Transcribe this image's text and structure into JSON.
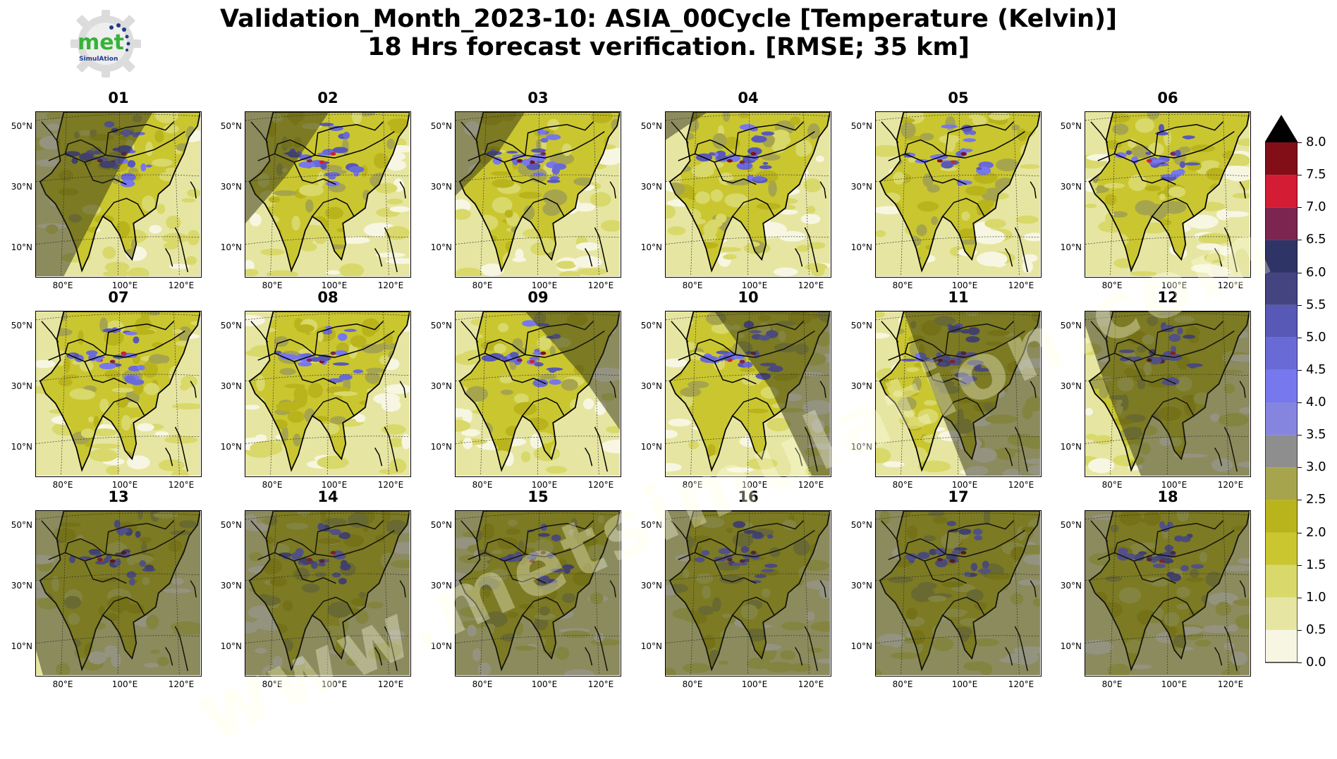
{
  "title_line1": "Validation_Month_2023-10: ASIA_00Cycle [Temperature (Kelvin)]",
  "title_line2": "18 Hrs forecast verification.  [RMSE; 35 km]",
  "logo": {
    "text": "met",
    "subtext": "SimulAtion"
  },
  "watermark": "www.metsimulation.com",
  "chart_data": {
    "type": "heatmap",
    "variable": "Temperature (Kelvin)",
    "metric": "RMSE",
    "resolution": "35 km",
    "panels": [
      "01",
      "02",
      "03",
      "04",
      "05",
      "06",
      "07",
      "08",
      "09",
      "10",
      "11",
      "12",
      "13",
      "14",
      "15",
      "16",
      "17",
      "18"
    ],
    "lat_ticks": [
      "50°N",
      "30°N",
      "10°N"
    ],
    "lon_ticks": [
      "80°E",
      "100°E",
      "120°E"
    ],
    "colorbar": {
      "ticks": [
        "0.0",
        "0.5",
        "1.0",
        "1.5",
        "2.0",
        "2.5",
        "3.0",
        "3.5",
        "4.0",
        "4.5",
        "5.0",
        "5.5",
        "6.0",
        "6.5",
        "7.0",
        "7.5",
        "8.0"
      ],
      "levels": [
        0.0,
        0.5,
        1.0,
        1.5,
        2.0,
        2.5,
        3.0,
        3.5,
        4.0,
        4.5,
        5.0,
        5.5,
        6.0,
        6.5,
        7.0,
        7.5,
        8.0
      ],
      "colors": [
        "#f7f6e2",
        "#e6e6a2",
        "#d9d86a",
        "#cac630",
        "#bab41c",
        "#a6a54e",
        "#8e8e8e",
        "#8585e0",
        "#7777ee",
        "#6a6ad6",
        "#5858b6",
        "#444480",
        "#2f3466",
        "#7c2550",
        "#d41c34",
        "#820f18"
      ],
      "extend_max_color": "#000000",
      "range": [
        0,
        8
      ]
    }
  }
}
